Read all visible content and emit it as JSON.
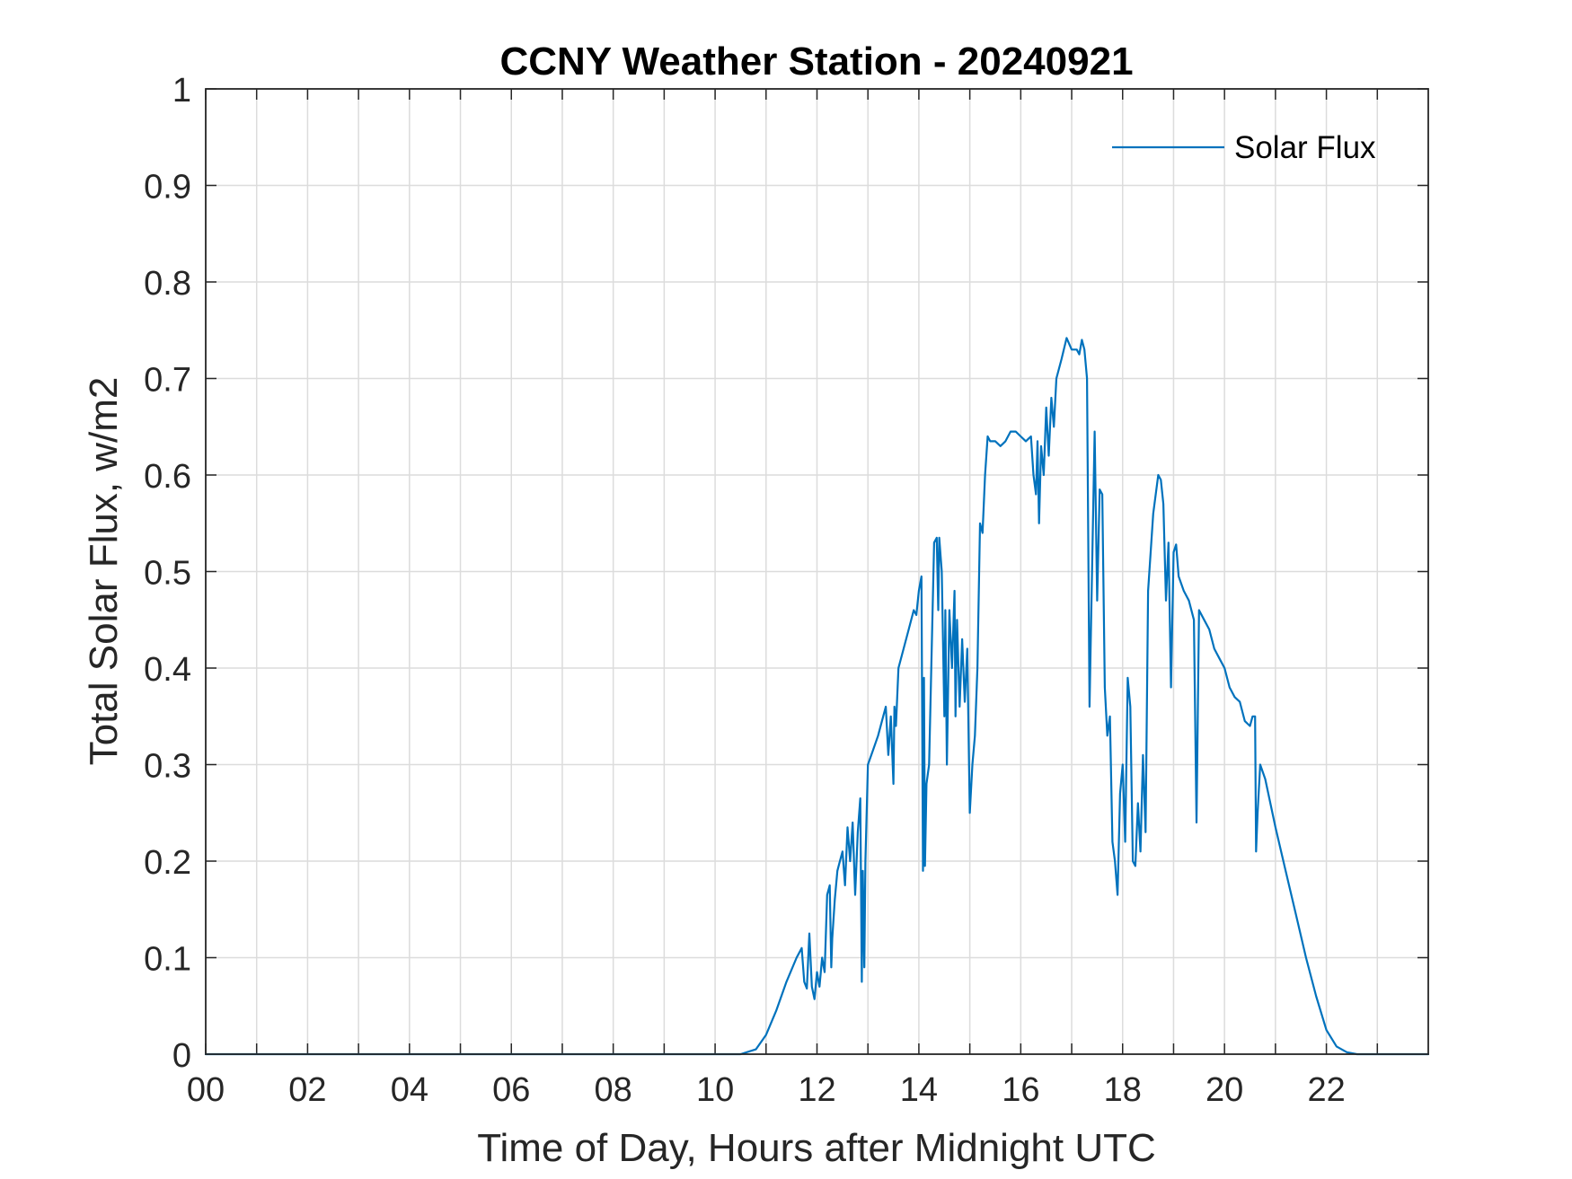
{
  "chart_data": {
    "type": "line",
    "title": "CCNY Weather Station - 20240921",
    "xlabel": "Time of Day, Hours after Midnight UTC",
    "ylabel": "Total Solar Flux, w/m2",
    "xlim": [
      0,
      24
    ],
    "ylim": [
      0,
      1
    ],
    "grid": true,
    "legend_position": "top-right",
    "colors": {
      "series": "#0072BD",
      "axes": "#262626",
      "grid": "#dcdcdc"
    },
    "x_ticks": [
      {
        "value": 0,
        "label": "00"
      },
      {
        "value": 2,
        "label": "02"
      },
      {
        "value": 4,
        "label": "04"
      },
      {
        "value": 6,
        "label": "06"
      },
      {
        "value": 8,
        "label": "08"
      },
      {
        "value": 10,
        "label": "10"
      },
      {
        "value": 12,
        "label": "12"
      },
      {
        "value": 14,
        "label": "14"
      },
      {
        "value": 16,
        "label": "16"
      },
      {
        "value": 18,
        "label": "18"
      },
      {
        "value": 20,
        "label": "20"
      },
      {
        "value": 22,
        "label": "22"
      }
    ],
    "x_minor_ticks": [
      1,
      3,
      5,
      7,
      9,
      11,
      13,
      15,
      17,
      19,
      21,
      23
    ],
    "y_ticks": [
      {
        "value": 0,
        "label": "0"
      },
      {
        "value": 0.1,
        "label": "0.1"
      },
      {
        "value": 0.2,
        "label": "0.2"
      },
      {
        "value": 0.3,
        "label": "0.3"
      },
      {
        "value": 0.4,
        "label": "0.4"
      },
      {
        "value": 0.5,
        "label": "0.5"
      },
      {
        "value": 0.6,
        "label": "0.6"
      },
      {
        "value": 0.7,
        "label": "0.7"
      },
      {
        "value": 0.8,
        "label": "0.8"
      },
      {
        "value": 0.9,
        "label": "0.9"
      },
      {
        "value": 1,
        "label": "1"
      }
    ],
    "series": [
      {
        "name": "Solar Flux",
        "points": [
          [
            0,
            0
          ],
          [
            10.5,
            0
          ],
          [
            10.8,
            0.005
          ],
          [
            11.0,
            0.02
          ],
          [
            11.2,
            0.045
          ],
          [
            11.4,
            0.075
          ],
          [
            11.6,
            0.1
          ],
          [
            11.7,
            0.11
          ],
          [
            11.75,
            0.075
          ],
          [
            11.8,
            0.068
          ],
          [
            11.85,
            0.125
          ],
          [
            11.9,
            0.07
          ],
          [
            11.95,
            0.057
          ],
          [
            12.0,
            0.085
          ],
          [
            12.05,
            0.07
          ],
          [
            12.1,
            0.1
          ],
          [
            12.15,
            0.085
          ],
          [
            12.2,
            0.165
          ],
          [
            12.25,
            0.175
          ],
          [
            12.28,
            0.09
          ],
          [
            12.3,
            0.12
          ],
          [
            12.35,
            0.16
          ],
          [
            12.4,
            0.19
          ],
          [
            12.45,
            0.2
          ],
          [
            12.5,
            0.21
          ],
          [
            12.55,
            0.175
          ],
          [
            12.6,
            0.235
          ],
          [
            12.65,
            0.2
          ],
          [
            12.7,
            0.24
          ],
          [
            12.75,
            0.165
          ],
          [
            12.8,
            0.23
          ],
          [
            12.85,
            0.265
          ],
          [
            12.88,
            0.075
          ],
          [
            12.9,
            0.19
          ],
          [
            12.93,
            0.09
          ],
          [
            12.95,
            0.2
          ],
          [
            13.0,
            0.3
          ],
          [
            13.1,
            0.315
          ],
          [
            13.2,
            0.33
          ],
          [
            13.3,
            0.35
          ],
          [
            13.35,
            0.36
          ],
          [
            13.4,
            0.31
          ],
          [
            13.45,
            0.35
          ],
          [
            13.5,
            0.28
          ],
          [
            13.52,
            0.36
          ],
          [
            13.55,
            0.34
          ],
          [
            13.6,
            0.4
          ],
          [
            13.7,
            0.42
          ],
          [
            13.8,
            0.44
          ],
          [
            13.9,
            0.46
          ],
          [
            13.95,
            0.455
          ],
          [
            14.0,
            0.48
          ],
          [
            14.05,
            0.495
          ],
          [
            14.08,
            0.19
          ],
          [
            14.1,
            0.39
          ],
          [
            14.12,
            0.195
          ],
          [
            14.15,
            0.28
          ],
          [
            14.2,
            0.3
          ],
          [
            14.3,
            0.53
          ],
          [
            14.35,
            0.535
          ],
          [
            14.38,
            0.46
          ],
          [
            14.4,
            0.535
          ],
          [
            14.45,
            0.5
          ],
          [
            14.5,
            0.35
          ],
          [
            14.52,
            0.46
          ],
          [
            14.55,
            0.3
          ],
          [
            14.6,
            0.46
          ],
          [
            14.65,
            0.4
          ],
          [
            14.7,
            0.48
          ],
          [
            14.72,
            0.35
          ],
          [
            14.75,
            0.45
          ],
          [
            14.8,
            0.36
          ],
          [
            14.85,
            0.43
          ],
          [
            14.9,
            0.365
          ],
          [
            14.95,
            0.42
          ],
          [
            15.0,
            0.25
          ],
          [
            15.05,
            0.3
          ],
          [
            15.1,
            0.33
          ],
          [
            15.15,
            0.4
          ],
          [
            15.2,
            0.55
          ],
          [
            15.25,
            0.54
          ],
          [
            15.3,
            0.6
          ],
          [
            15.35,
            0.64
          ],
          [
            15.4,
            0.635
          ],
          [
            15.5,
            0.635
          ],
          [
            15.6,
            0.63
          ],
          [
            15.7,
            0.635
          ],
          [
            15.8,
            0.645
          ],
          [
            15.9,
            0.645
          ],
          [
            16.0,
            0.64
          ],
          [
            16.1,
            0.635
          ],
          [
            16.2,
            0.64
          ],
          [
            16.25,
            0.6
          ],
          [
            16.3,
            0.58
          ],
          [
            16.33,
            0.635
          ],
          [
            16.36,
            0.55
          ],
          [
            16.4,
            0.63
          ],
          [
            16.45,
            0.6
          ],
          [
            16.5,
            0.67
          ],
          [
            16.55,
            0.62
          ],
          [
            16.6,
            0.68
          ],
          [
            16.65,
            0.65
          ],
          [
            16.7,
            0.7
          ],
          [
            16.8,
            0.72
          ],
          [
            16.9,
            0.742
          ],
          [
            17.0,
            0.73
          ],
          [
            17.1,
            0.73
          ],
          [
            17.15,
            0.725
          ],
          [
            17.2,
            0.74
          ],
          [
            17.25,
            0.73
          ],
          [
            17.3,
            0.7
          ],
          [
            17.35,
            0.36
          ],
          [
            17.4,
            0.5
          ],
          [
            17.45,
            0.645
          ],
          [
            17.5,
            0.47
          ],
          [
            17.55,
            0.585
          ],
          [
            17.6,
            0.58
          ],
          [
            17.65,
            0.38
          ],
          [
            17.7,
            0.33
          ],
          [
            17.75,
            0.35
          ],
          [
            17.8,
            0.22
          ],
          [
            17.85,
            0.2
          ],
          [
            17.9,
            0.165
          ],
          [
            17.95,
            0.27
          ],
          [
            18.0,
            0.3
          ],
          [
            18.05,
            0.22
          ],
          [
            18.1,
            0.39
          ],
          [
            18.15,
            0.36
          ],
          [
            18.2,
            0.2
          ],
          [
            18.25,
            0.195
          ],
          [
            18.3,
            0.26
          ],
          [
            18.35,
            0.21
          ],
          [
            18.4,
            0.31
          ],
          [
            18.45,
            0.23
          ],
          [
            18.5,
            0.48
          ],
          [
            18.6,
            0.56
          ],
          [
            18.7,
            0.6
          ],
          [
            18.75,
            0.595
          ],
          [
            18.8,
            0.57
          ],
          [
            18.85,
            0.47
          ],
          [
            18.9,
            0.53
          ],
          [
            18.95,
            0.38
          ],
          [
            19.0,
            0.52
          ],
          [
            19.05,
            0.528
          ],
          [
            19.1,
            0.495
          ],
          [
            19.2,
            0.48
          ],
          [
            19.3,
            0.47
          ],
          [
            19.4,
            0.45
          ],
          [
            19.45,
            0.24
          ],
          [
            19.5,
            0.46
          ],
          [
            19.6,
            0.45
          ],
          [
            19.7,
            0.44
          ],
          [
            19.8,
            0.42
          ],
          [
            19.9,
            0.41
          ],
          [
            20.0,
            0.4
          ],
          [
            20.1,
            0.38
          ],
          [
            20.2,
            0.37
          ],
          [
            20.3,
            0.365
          ],
          [
            20.4,
            0.345
          ],
          [
            20.5,
            0.34
          ],
          [
            20.55,
            0.35
          ],
          [
            20.6,
            0.35
          ],
          [
            20.62,
            0.21
          ],
          [
            20.65,
            0.25
          ],
          [
            20.7,
            0.3
          ],
          [
            20.8,
            0.285
          ],
          [
            20.9,
            0.26
          ],
          [
            21.0,
            0.235
          ],
          [
            21.2,
            0.19
          ],
          [
            21.4,
            0.145
          ],
          [
            21.6,
            0.1
          ],
          [
            21.8,
            0.06
          ],
          [
            22.0,
            0.025
          ],
          [
            22.2,
            0.008
          ],
          [
            22.4,
            0.002
          ],
          [
            22.6,
            0
          ],
          [
            24.0,
            0
          ]
        ]
      }
    ]
  }
}
